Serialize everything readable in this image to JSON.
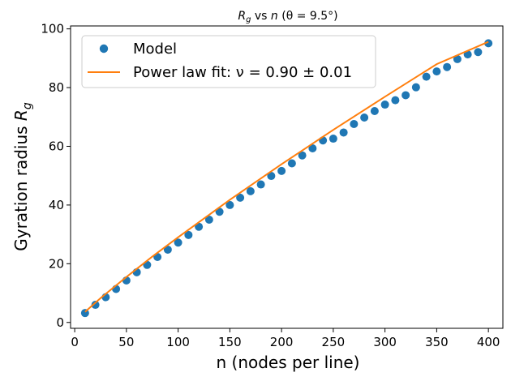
{
  "chart_data": {
    "type": "scatter",
    "title": "R_g vs n (θ = 9.5°)",
    "title_parts": {
      "r": "R",
      "g": "g",
      "rest1": " vs ",
      "n": "n",
      "rest2": " (θ = 9.5°)"
    },
    "xlabel": "n (nodes per line)",
    "ylabel": "Gyration radius R_g",
    "ylabel_parts": {
      "main": "Gyration radius ",
      "r": "R",
      "g": "g"
    },
    "xlim": [
      -4,
      414
    ],
    "ylim": [
      -2,
      101
    ],
    "xticks": [
      0,
      50,
      100,
      150,
      200,
      250,
      300,
      350,
      400
    ],
    "yticks": [
      0,
      20,
      40,
      60,
      80,
      100
    ],
    "legend_position": "upper-left",
    "series": [
      {
        "name": "Model",
        "kind": "scatter",
        "color": "#1f77b4",
        "x": [
          10,
          20,
          30,
          40,
          50,
          60,
          70,
          80,
          90,
          100,
          110,
          120,
          130,
          140,
          150,
          160,
          170,
          180,
          190,
          200,
          210,
          220,
          230,
          240,
          250,
          260,
          270,
          280,
          290,
          300,
          310,
          320,
          330,
          340,
          350,
          360,
          370,
          380,
          390,
          400
        ],
        "y": [
          3.2,
          6.0,
          8.6,
          11.4,
          14.3,
          17.1,
          19.6,
          22.3,
          24.8,
          27.2,
          29.8,
          32.6,
          35.0,
          37.7,
          40.0,
          42.5,
          44.7,
          47.0,
          49.9,
          51.6,
          54.2,
          56.9,
          59.3,
          62.0,
          62.6,
          64.7,
          67.6,
          69.8,
          72.0,
          74.2,
          75.7,
          77.4,
          80.1,
          83.7,
          85.5,
          87.0,
          89.7,
          91.3,
          92.1,
          95.1
        ]
      },
      {
        "name": "Power law fit: ν = 0.90 ± 0.01",
        "kind": "line",
        "color": "#ff7f0e",
        "x": [
          10,
          25,
          50,
          75,
          100,
          150,
          200,
          250,
          300,
          350,
          400
        ],
        "y": [
          3.6,
          8.3,
          15.5,
          22.4,
          29.0,
          41.8,
          53.9,
          65.6,
          76.9,
          88.0,
          95.6
        ]
      }
    ]
  }
}
